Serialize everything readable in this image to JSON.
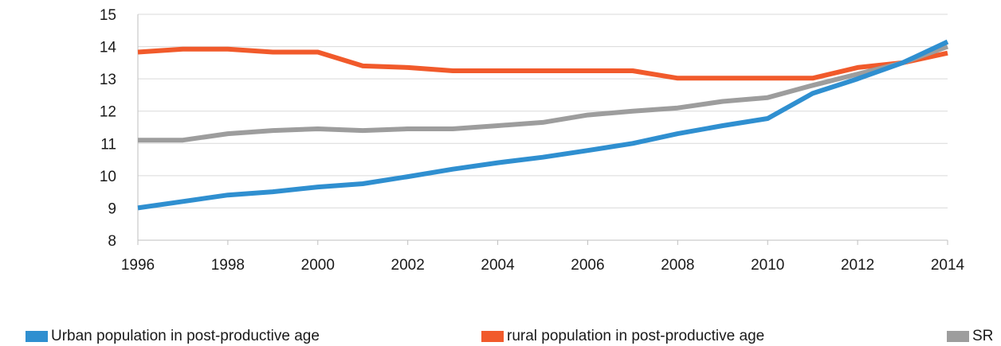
{
  "chart_data": {
    "type": "line",
    "title": "",
    "xlabel": "",
    "ylabel": "",
    "x": [
      1996,
      1997,
      1998,
      1999,
      2000,
      2001,
      2002,
      2003,
      2004,
      2005,
      2006,
      2007,
      2008,
      2009,
      2010,
      2011,
      2012,
      2013,
      2014
    ],
    "xlim": [
      1996,
      2014
    ],
    "ylim": [
      8,
      15
    ],
    "x_ticks": [
      "1996",
      "1998",
      "2000",
      "2002",
      "2004",
      "2006",
      "2008",
      "2010",
      "2012",
      "2014"
    ],
    "y_ticks": [
      "8",
      "9",
      "10",
      "11",
      "12",
      "13",
      "14",
      "15"
    ],
    "grid": "horizontal",
    "legend_position": "bottom",
    "series": [
      {
        "name": "Urban population in post-productive age",
        "color": "#2f8fd0",
        "values": [
          9.0,
          9.2,
          9.4,
          9.5,
          9.65,
          9.75,
          9.97,
          10.2,
          10.4,
          10.57,
          10.78,
          11.0,
          11.3,
          11.55,
          11.77,
          12.55,
          13.0,
          13.5,
          14.15
        ]
      },
      {
        "name": "rural population in post-productive age",
        "color": "#f15a2b",
        "values": [
          13.83,
          13.92,
          13.92,
          13.83,
          13.83,
          13.4,
          13.35,
          13.25,
          13.25,
          13.25,
          13.25,
          13.25,
          13.02,
          13.02,
          13.02,
          13.02,
          13.35,
          13.5,
          13.8
        ]
      },
      {
        "name": "SR",
        "color": "#9d9d9d",
        "values": [
          11.1,
          11.1,
          11.3,
          11.4,
          11.45,
          11.4,
          11.45,
          11.45,
          11.55,
          11.65,
          11.88,
          12.0,
          12.1,
          12.3,
          12.42,
          12.8,
          13.15,
          13.5,
          14.0
        ]
      }
    ]
  }
}
